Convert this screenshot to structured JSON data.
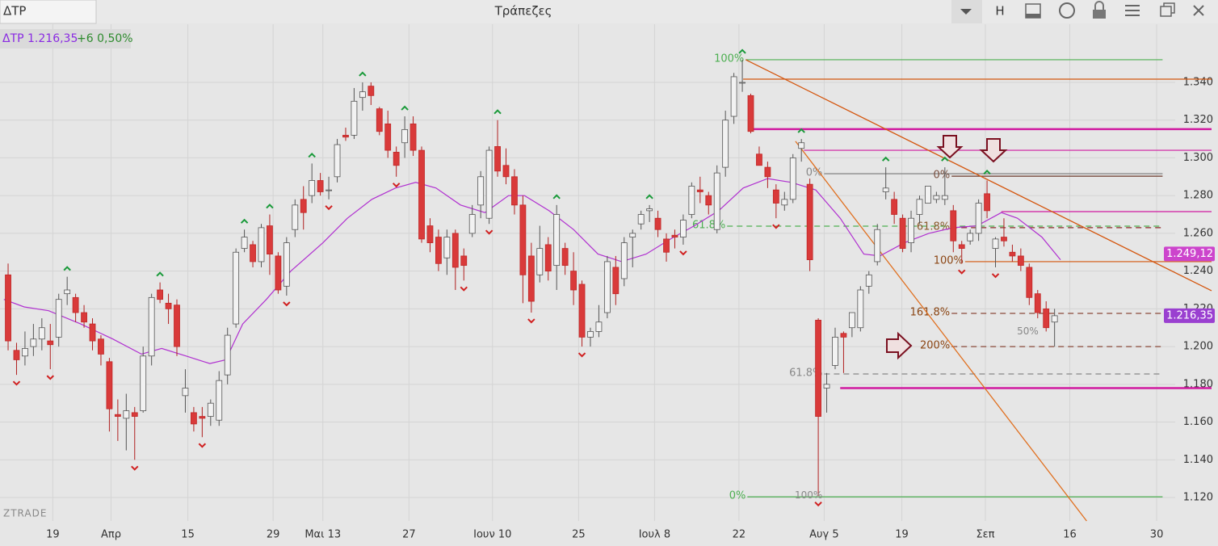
{
  "header": {
    "tab": "ΔΤΡ",
    "title": "Τράπεζες",
    "button": "H"
  },
  "chart_data": {
    "type": "candlestick",
    "info": "ΔΤΡ 1.216,35",
    "change": "+6 0,50%",
    "watermark": "ZTRADE",
    "ylim": [
      1107.6,
      1370.8
    ],
    "yticks": [
      {
        "value": 1340,
        "label": "1.340"
      },
      {
        "value": 1320,
        "label": "1.320"
      },
      {
        "value": 1300,
        "label": "1.300"
      },
      {
        "value": 1280,
        "label": "1.280"
      },
      {
        "value": 1260,
        "label": "1.260"
      },
      {
        "value": 1240,
        "label": "1.240"
      },
      {
        "value": 1220,
        "label": "1.220"
      },
      {
        "value": 1200,
        "label": "1.200"
      },
      {
        "value": 1180,
        "label": "1.180"
      },
      {
        "value": 1160,
        "label": "1.160"
      },
      {
        "value": 1140,
        "label": "1.140"
      },
      {
        "value": 1120,
        "label": "1.120"
      }
    ],
    "xlim": [
      -0.96,
      142.6
    ],
    "xticks": [
      {
        "value": 5.3,
        "label": "19"
      },
      {
        "value": 12.2,
        "label": "Απρ"
      },
      {
        "value": 21.3,
        "label": "15"
      },
      {
        "value": 31.4,
        "label": "29"
      },
      {
        "value": 37.3,
        "label": "Μαι 13"
      },
      {
        "value": 47.5,
        "label": "27"
      },
      {
        "value": 57.4,
        "label": "Ιουν 10"
      },
      {
        "value": 67.6,
        "label": "25"
      },
      {
        "value": 76.6,
        "label": "Ιουλ 8"
      },
      {
        "value": 86.6,
        "label": "22"
      },
      {
        "value": 96.7,
        "label": "Αυγ 5"
      },
      {
        "value": 105.9,
        "label": "19"
      },
      {
        "value": 115.8,
        "label": "Σεπ"
      },
      {
        "value": 125.8,
        "label": "16"
      },
      {
        "value": 136.1,
        "label": "30"
      }
    ],
    "grid": true,
    "up_color": "#f2f2f2",
    "down_color": "#d93a3a",
    "ohlc": [
      [
        1238,
        1244,
        1198,
        1203
      ],
      [
        1198,
        1202,
        1185,
        1193
      ],
      [
        1195,
        1208,
        1190,
        1199
      ],
      [
        1200,
        1212,
        1195,
        1204
      ],
      [
        1204,
        1215,
        1198,
        1210
      ],
      [
        1203,
        1212,
        1188,
        1201
      ],
      [
        1205,
        1228,
        1200,
        1225
      ],
      [
        1228,
        1237,
        1222,
        1230
      ],
      [
        1226,
        1228,
        1213,
        1218
      ],
      [
        1218,
        1222,
        1210,
        1213
      ],
      [
        1212,
        1215,
        1198,
        1203
      ],
      [
        1204,
        1206,
        1190,
        1196
      ],
      [
        1192,
        1194,
        1155,
        1167
      ],
      [
        1164,
        1172,
        1150,
        1163
      ],
      [
        1162,
        1175,
        1145,
        1166
      ],
      [
        1165,
        1168,
        1140,
        1163
      ],
      [
        1166,
        1200,
        1165,
        1195
      ],
      [
        1195,
        1228,
        1190,
        1226
      ],
      [
        1230,
        1234,
        1223,
        1225
      ],
      [
        1223,
        1228,
        1212,
        1220
      ],
      [
        1222,
        1225,
        1195,
        1200
      ],
      [
        1174,
        1188,
        1165,
        1178
      ],
      [
        1165,
        1168,
        1155,
        1159
      ],
      [
        1163,
        1168,
        1152,
        1162
      ],
      [
        1163,
        1172,
        1158,
        1170
      ],
      [
        1161,
        1187,
        1158,
        1182
      ],
      [
        1185,
        1210,
        1180,
        1206
      ],
      [
        1212,
        1252,
        1210,
        1250
      ],
      [
        1252,
        1262,
        1250,
        1258
      ],
      [
        1254,
        1256,
        1242,
        1245
      ],
      [
        1245,
        1265,
        1242,
        1263
      ],
      [
        1264,
        1270,
        1238,
        1249
      ],
      [
        1248,
        1250,
        1228,
        1230
      ],
      [
        1232,
        1258,
        1227,
        1255
      ],
      [
        1262,
        1278,
        1258,
        1275
      ],
      [
        1278,
        1285,
        1262,
        1271
      ],
      [
        1280,
        1297,
        1276,
        1288
      ],
      [
        1288,
        1292,
        1280,
        1282
      ],
      [
        1283,
        1290,
        1278,
        1283
      ],
      [
        1290,
        1310,
        1287,
        1307
      ],
      [
        1312,
        1316,
        1309,
        1311
      ],
      [
        1312,
        1337,
        1310,
        1330
      ],
      [
        1332,
        1340,
        1325,
        1335
      ],
      [
        1338,
        1340,
        1328,
        1333
      ],
      [
        1326,
        1327,
        1312,
        1314
      ],
      [
        1318,
        1325,
        1300,
        1304
      ],
      [
        1303,
        1306,
        1290,
        1296
      ],
      [
        1308,
        1322,
        1300,
        1315
      ],
      [
        1318,
        1322,
        1301,
        1304
      ],
      [
        1304,
        1306,
        1255,
        1257
      ],
      [
        1264,
        1268,
        1250,
        1255
      ],
      [
        1258,
        1262,
        1240,
        1244
      ],
      [
        1247,
        1262,
        1238,
        1258
      ],
      [
        1260,
        1262,
        1230,
        1242
      ],
      [
        1248,
        1252,
        1235,
        1243
      ],
      [
        1260,
        1275,
        1258,
        1270
      ],
      [
        1275,
        1293,
        1268,
        1290
      ],
      [
        1268,
        1306,
        1265,
        1304
      ],
      [
        1306,
        1320,
        1290,
        1293
      ],
      [
        1296,
        1305,
        1286,
        1290
      ],
      [
        1290,
        1294,
        1270,
        1275
      ],
      [
        1275,
        1280,
        1223,
        1238
      ],
      [
        1248,
        1255,
        1218,
        1224
      ],
      [
        1238,
        1264,
        1234,
        1252
      ],
      [
        1254,
        1258,
        1235,
        1240
      ],
      [
        1243,
        1275,
        1230,
        1270
      ],
      [
        1252,
        1255,
        1238,
        1243
      ],
      [
        1240,
        1250,
        1222,
        1230
      ],
      [
        1233,
        1235,
        1200,
        1205
      ],
      [
        1205,
        1210,
        1200,
        1208
      ],
      [
        1208,
        1222,
        1205,
        1213
      ],
      [
        1218,
        1248,
        1215,
        1245
      ],
      [
        1242,
        1248,
        1222,
        1228
      ],
      [
        1236,
        1258,
        1232,
        1255
      ],
      [
        1258,
        1262,
        1242,
        1260
      ],
      [
        1265,
        1272,
        1262,
        1270
      ],
      [
        1272,
        1275,
        1266,
        1273
      ],
      [
        1268,
        1272,
        1258,
        1262
      ],
      [
        1257,
        1260,
        1245,
        1250
      ],
      [
        1259,
        1262,
        1252,
        1258
      ],
      [
        1258,
        1270,
        1254,
        1267
      ],
      [
        1270,
        1287,
        1268,
        1285
      ],
      [
        1283,
        1290,
        1276,
        1282
      ],
      [
        1280,
        1282,
        1270,
        1275
      ],
      [
        1262,
        1296,
        1260,
        1292
      ],
      [
        1295,
        1325,
        1290,
        1320
      ],
      [
        1322,
        1345,
        1318,
        1343
      ],
      [
        1340,
        1352,
        1335,
        1340
      ],
      [
        1333,
        1334,
        1313,
        1314
      ],
      [
        1302,
        1306,
        1296,
        1296
      ],
      [
        1295,
        1298,
        1284,
        1290
      ],
      [
        1283,
        1286,
        1268,
        1276
      ],
      [
        1275,
        1282,
        1272,
        1278
      ],
      [
        1278,
        1302,
        1276,
        1300
      ],
      [
        1305,
        1310,
        1298,
        1308
      ],
      [
        1286,
        1289,
        1240,
        1246
      ],
      [
        1214,
        1215,
        1121,
        1163
      ],
      [
        1178,
        1186,
        1165,
        1180
      ],
      [
        1190,
        1210,
        1188,
        1205
      ],
      [
        1207,
        1208,
        1186,
        1205
      ],
      [
        1210,
        1218,
        1205,
        1218
      ],
      [
        1210,
        1232,
        1208,
        1230
      ],
      [
        1232,
        1240,
        1228,
        1238
      ],
      [
        1245,
        1265,
        1243,
        1262
      ],
      [
        1282,
        1295,
        1278,
        1284
      ],
      [
        1278,
        1282,
        1265,
        1270
      ],
      [
        1268,
        1270,
        1250,
        1252
      ],
      [
        1255,
        1272,
        1250,
        1268
      ],
      [
        1270,
        1280,
        1265,
        1278
      ],
      [
        1276,
        1285,
        1276,
        1285
      ],
      [
        1278,
        1282,
        1276,
        1280
      ],
      [
        1278,
        1295,
        1275,
        1280
      ],
      [
        1272,
        1275,
        1250,
        1256
      ],
      [
        1254,
        1256,
        1244,
        1252
      ],
      [
        1256,
        1262,
        1254,
        1260
      ],
      [
        1260,
        1278,
        1256,
        1276
      ],
      [
        1281,
        1288,
        1268,
        1272
      ],
      [
        1252,
        1258,
        1242,
        1257
      ],
      [
        1258,
        1268,
        1253,
        1256
      ],
      [
        1250,
        1254,
        1245,
        1248
      ],
      [
        1248,
        1252,
        1240,
        1243
      ],
      [
        1242,
        1244,
        1222,
        1226
      ],
      [
        1228,
        1230,
        1215,
        1218
      ],
      [
        1220,
        1224,
        1208,
        1210
      ],
      [
        1213,
        1220,
        1200,
        1216.35
      ]
    ],
    "ma": {
      "color": "#b030d0",
      "x": [
        -0.5,
        1.9,
        4.8,
        8.6,
        12.4,
        15.8,
        18.2,
        21.1,
        23.9,
        25.8,
        27.8,
        30.6,
        33.5,
        37.3,
        40.2,
        43.1,
        45.9,
        48.3,
        50.7,
        53.6,
        56.5,
        59.3,
        61.2,
        64.1,
        67,
        69.9,
        72.7,
        75.6,
        78.5,
        81.3,
        84.2,
        87.1,
        90,
        92.8,
        95.7,
        98.6,
        101.4,
        103.3,
        106.2,
        109.1,
        112,
        114.8,
        117.7,
        119.6,
        122.5,
        124.7
      ],
      "values": [
        1225,
        1221,
        1219,
        1212,
        1204,
        1196,
        1199,
        1195,
        1191,
        1193,
        1212,
        1225,
        1240,
        1255,
        1268,
        1278,
        1284,
        1287,
        1284,
        1275,
        1271,
        1280,
        1280,
        1272,
        1262,
        1249,
        1245,
        1249,
        1257,
        1264,
        1272,
        1284,
        1289,
        1287,
        1283,
        1268,
        1249,
        1248,
        1255,
        1260,
        1263,
        1264,
        1271,
        1268,
        1258,
        1246
      ]
    },
    "fractals_up": [
      7,
      18,
      28,
      31,
      36,
      42,
      47,
      58,
      65,
      76,
      87,
      94,
      104,
      111,
      116
    ],
    "fractals_down": [
      1,
      5,
      15,
      23,
      33,
      38,
      46,
      54,
      57,
      62,
      68,
      80,
      91,
      96,
      113,
      117
    ],
    "levels": [
      {
        "value": 1352,
        "x": [
          87.4,
          136.8
        ],
        "color": "#4caf50",
        "style": "solid",
        "label": "100%",
        "label_color": "#4caf50"
      },
      {
        "value": 1341.7,
        "x": [
          87.1,
          142.6
        ],
        "color": "#d4560e",
        "style": "solid"
      },
      {
        "value": 1315.2,
        "x": [
          88,
          142.6
        ],
        "color": "#d01aa0",
        "style": "thick"
      },
      {
        "value": 1304,
        "x": [
          94.3,
          142.6
        ],
        "color": "#d01aa0",
        "style": "solid"
      },
      {
        "value": 1291.6,
        "x": [
          96.7,
          136.8
        ],
        "color": "#777777",
        "style": "solid",
        "label": "0%",
        "label_color": "#888888"
      },
      {
        "value": 1290.3,
        "x": [
          111.8,
          136.8
        ],
        "color": "#6b3a2a",
        "style": "solid",
        "label": "0%",
        "label_color": "#7a5040"
      },
      {
        "value": 1271.5,
        "x": [
          117.7,
          142.6
        ],
        "color": "#d01aa0",
        "style": "solid"
      },
      {
        "value": 1263.8,
        "x": [
          85.2,
          136.8
        ],
        "color": "#4caf50",
        "style": "dashed",
        "label": "61.8%",
        "label_color": "#4caf50"
      },
      {
        "value": 1263,
        "x": [
          111.8,
          136.8
        ],
        "color": "#8b2a2a",
        "style": "dashed",
        "label": "61.8%",
        "label_color": "#8b5a2b"
      },
      {
        "value": 1245,
        "x": [
          113.4,
          142.6
        ],
        "color": "#d4560e",
        "style": "solid",
        "label": "100%",
        "label_color": "#8b4513"
      },
      {
        "value": 1217.6,
        "x": [
          111.8,
          136.8
        ],
        "color": "#8b4a3a",
        "style": "dashed",
        "label": "161.8%",
        "label_color": "#8b4513"
      },
      {
        "value": 1200,
        "x": [
          111.8,
          136.8
        ],
        "color": "#8b4a3a",
        "style": "dashed",
        "label": "200%",
        "label_color": "#8b4513"
      },
      {
        "value": 1185.5,
        "x": [
          96.7,
          136.8
        ],
        "color": "#888888",
        "style": "dashed",
        "label": "61.8%",
        "label_color": "#888888"
      },
      {
        "value": 1178,
        "x": [
          98.6,
          142.6
        ],
        "color": "#d01aa0",
        "style": "thick"
      },
      {
        "value": 1120.4,
        "x": [
          87.6,
          136.8
        ],
        "color": "#4caf50",
        "style": "solid",
        "label": "0%",
        "label_color": "#4caf50"
      }
    ],
    "trendlines": [
      {
        "x": [
          87.4,
          142.6
        ],
        "y": [
          1352,
          1229.6
        ],
        "color": "#d4560e"
      },
      {
        "x": [
          93.3,
          127.8
        ],
        "y": [
          1308.8,
          1107.6
        ],
        "color": "#e07020"
      }
    ],
    "annotations": [
      {
        "text": "100%",
        "x": 96.5,
        "y": 1121,
        "color": "#888888"
      },
      {
        "text": "50%",
        "x": 122.1,
        "y": 1208,
        "color": "#888888"
      }
    ],
    "price_labels": [
      {
        "value": 1249.12,
        "label": "1.249,12",
        "color": "#cc44cc"
      },
      {
        "value": 1216.35,
        "label": "1.216,35",
        "color": "#9a40d0"
      }
    ]
  }
}
